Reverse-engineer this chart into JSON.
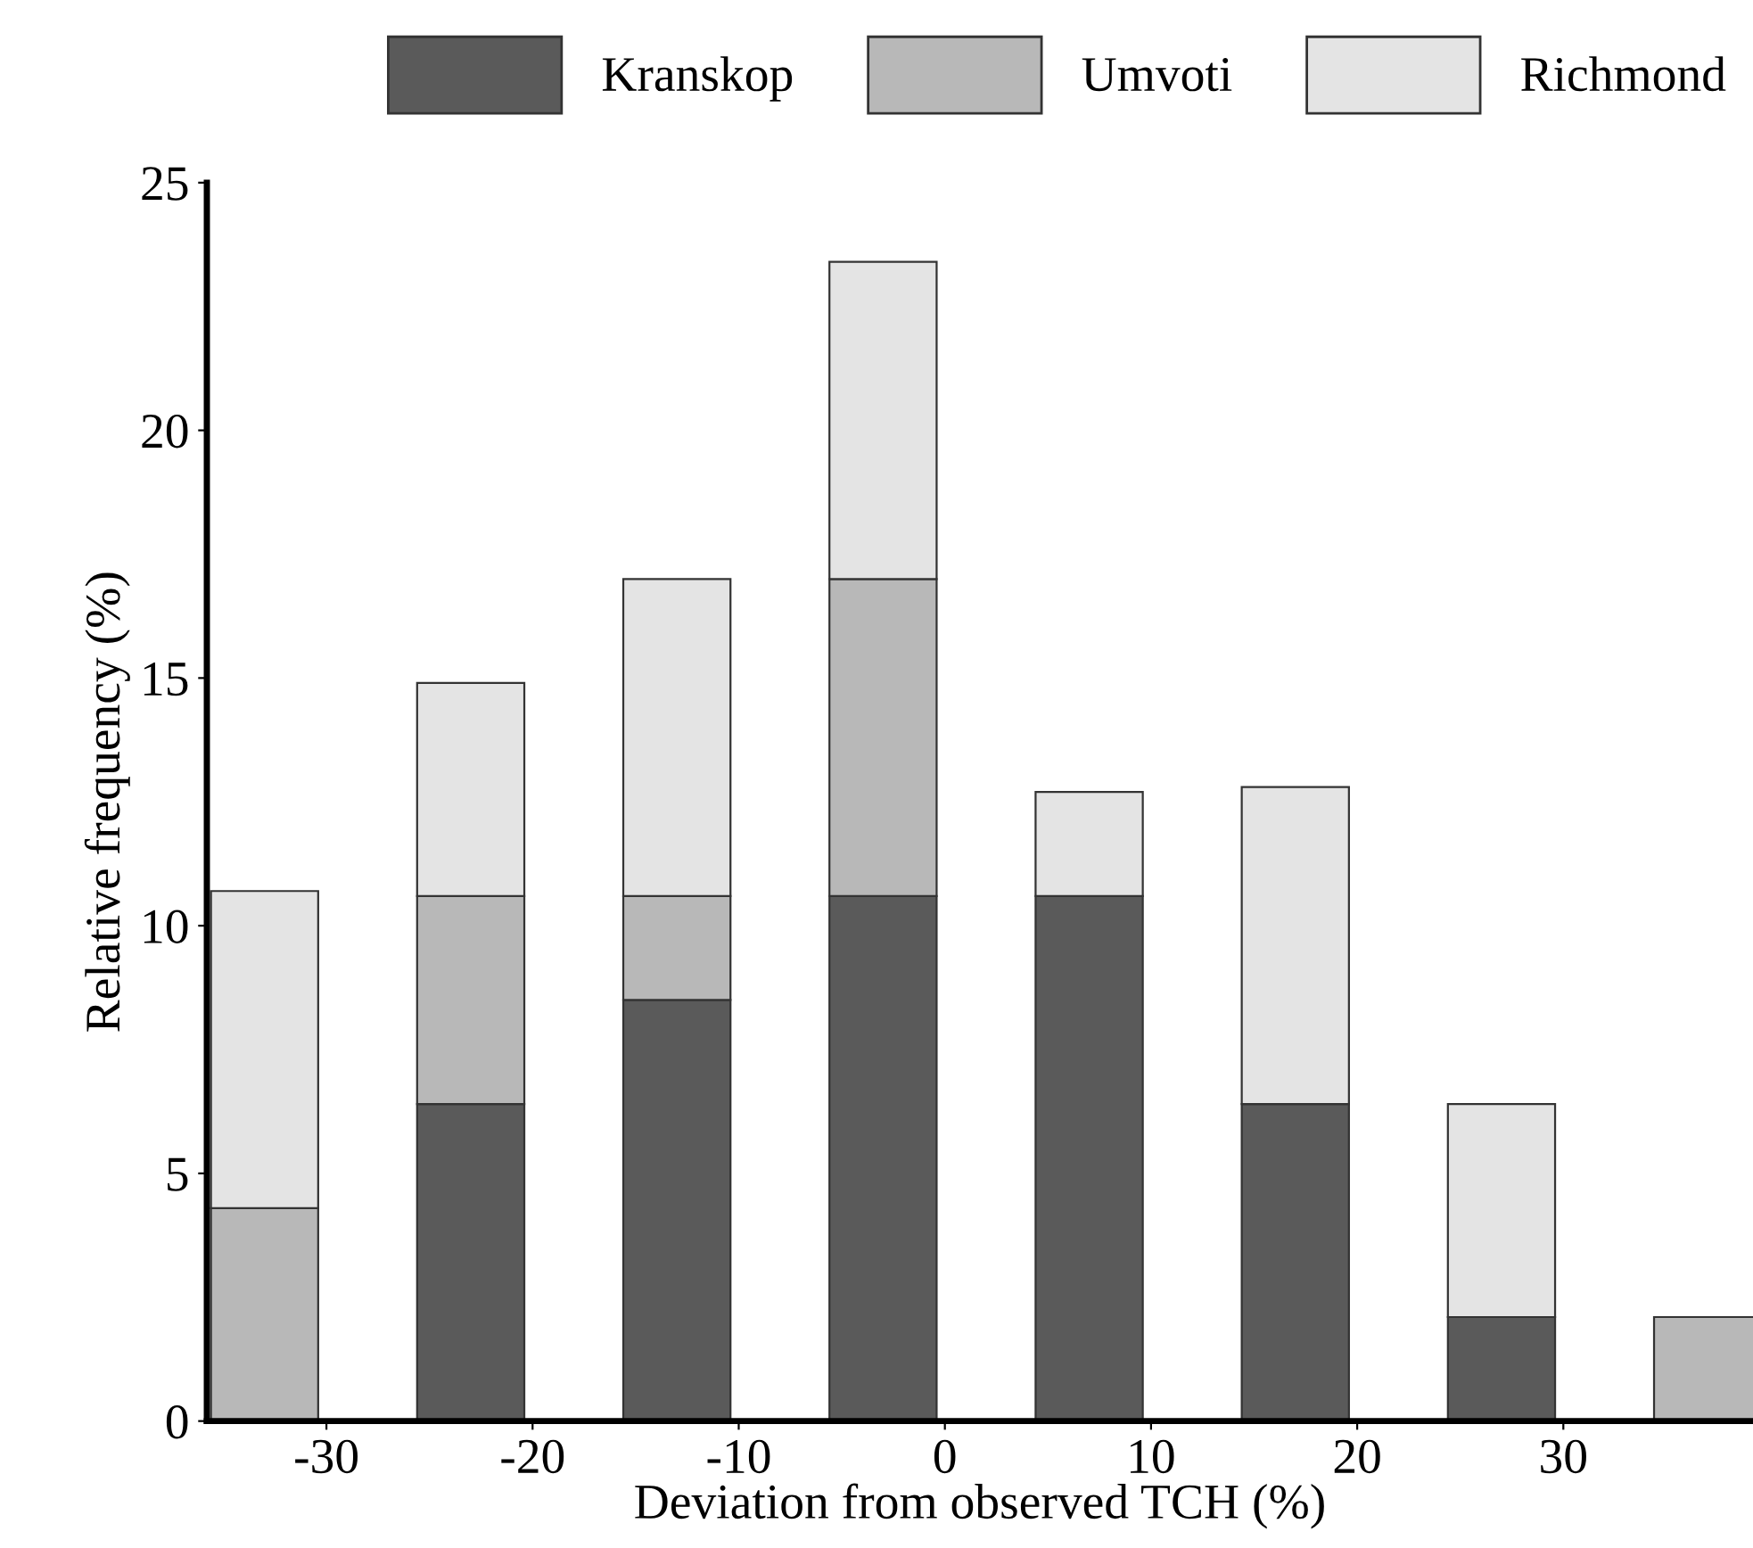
{
  "chart_data": {
    "type": "bar",
    "stacked": true,
    "xlabel": "Deviation from observed TCH (%)",
    "ylabel": "Relative frequency (%)",
    "x": [
      -33,
      -23,
      -13,
      -3,
      7,
      17,
      27,
      37
    ],
    "series": [
      {
        "name": "Kranskop",
        "color": "#5a5a5a",
        "values": [
          0,
          6.4,
          8.5,
          10.6,
          10.6,
          6.4,
          2.1,
          0
        ]
      },
      {
        "name": "Umvoti",
        "color": "#b8b8b8",
        "values": [
          4.3,
          4.2,
          2.1,
          6.4,
          0,
          0,
          0,
          2.1
        ]
      },
      {
        "name": "Richmond",
        "color": "#e4e4e4",
        "values": [
          6.4,
          4.3,
          6.4,
          6.4,
          2.1,
          6.4,
          4.3,
          0
        ]
      }
    ],
    "xlim": [
      -35.8,
      39.2
    ],
    "xticks": [
      -30,
      -20,
      -10,
      0,
      10,
      20,
      30
    ],
    "ylim": [
      0,
      25
    ],
    "yticks": [
      0,
      5,
      10,
      15,
      20,
      25
    ],
    "grid": false,
    "legend": "top"
  }
}
